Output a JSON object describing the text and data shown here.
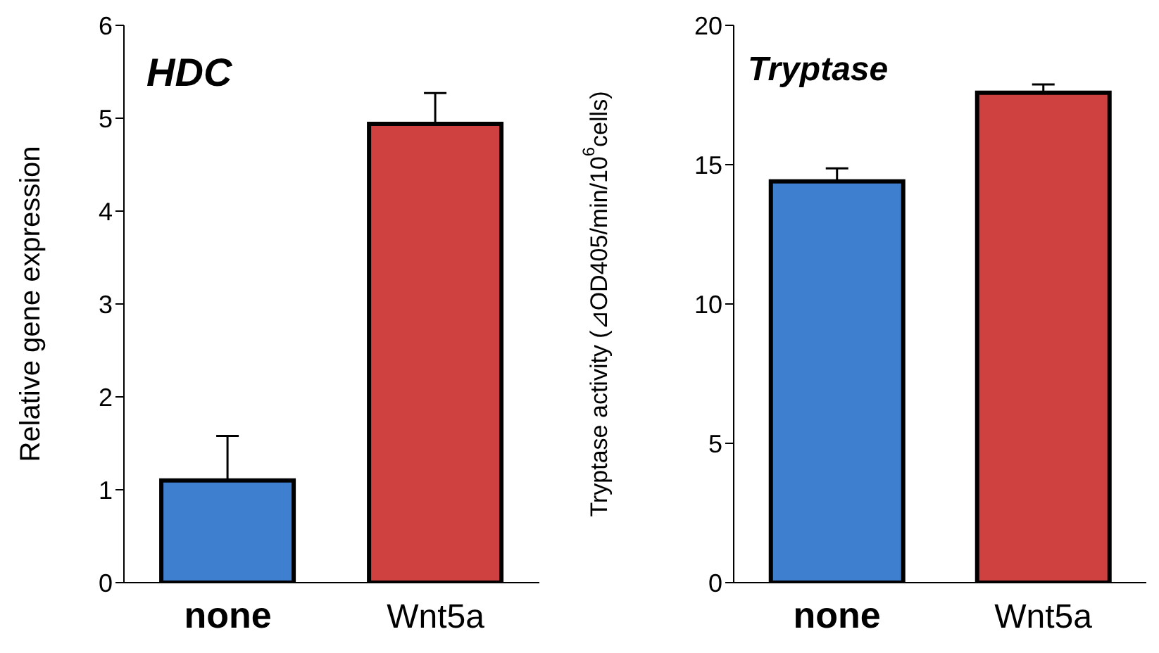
{
  "chart_data": [
    {
      "type": "bar",
      "title": "HDC",
      "ylabel": "Relative gene expression",
      "categories": [
        "none",
        "Wnt5a"
      ],
      "values": [
        1.1,
        4.94
      ],
      "colors": [
        "#3f7fcf",
        "#cf4040"
      ],
      "errors": [
        [
          1.1,
          1.58
        ],
        [
          4.94,
          5.27
        ]
      ],
      "ylim": [
        0,
        6
      ],
      "yticks": [
        0,
        1,
        2,
        3,
        4,
        5,
        6
      ],
      "grid": false,
      "legend": false
    },
    {
      "type": "bar",
      "title": "Tryptase",
      "ylabel": "Tryptase activity (⊿OD405/min/10$^{6}$cells)",
      "categories": [
        "none",
        "Wnt5a"
      ],
      "values": [
        14.4,
        17.58
      ],
      "colors": [
        "#3f7fcf",
        "#cf4040"
      ],
      "errors": [
        [
          14.4,
          14.87
        ],
        [
          17.58,
          17.88
        ]
      ],
      "ylim": [
        0,
        20
      ],
      "yticks": [
        0,
        5,
        10,
        15,
        20
      ],
      "grid": false,
      "legend": false
    }
  ]
}
